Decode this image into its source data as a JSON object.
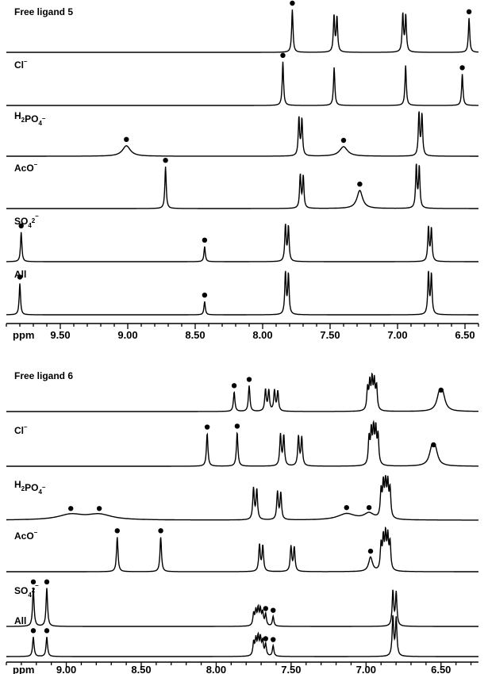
{
  "chart_data": [
    {
      "type": "nmr_stack",
      "x_unit_label": "ppm",
      "xlim": [
        9.9,
        6.4
      ],
      "ticks": [
        "9.50",
        "9.00",
        "8.50",
        "8.00",
        "7.50",
        "7.00",
        "6.50"
      ],
      "traces": [
        {
          "label": "Free ligand 5",
          "peaks": [
            {
              "ppm": 7.78,
              "height": 0.9,
              "star": true
            },
            {
              "ppm": 7.46,
              "height": 0.76,
              "mult": "d",
              "star": false
            },
            {
              "ppm": 6.95,
              "height": 0.8,
              "mult": "d",
              "star": false
            },
            {
              "ppm": 6.47,
              "height": 0.72,
              "star": true
            }
          ]
        },
        {
          "label": "Cl⁻",
          "peaks": [
            {
              "ppm": 7.85,
              "height": 0.92,
              "star": true
            },
            {
              "ppm": 7.47,
              "height": 0.8,
              "star": false
            },
            {
              "ppm": 6.94,
              "height": 0.84,
              "star": false
            },
            {
              "ppm": 6.52,
              "height": 0.66,
              "star": true
            }
          ]
        },
        {
          "label": "H₂PO₄⁻",
          "peaks": [
            {
              "ppm": 9.01,
              "height": 0.22,
              "width": 0.035,
              "star": true
            },
            {
              "ppm": 7.72,
              "height": 0.8,
              "mult": "d",
              "star": false
            },
            {
              "ppm": 7.4,
              "height": 0.2,
              "width": 0.035,
              "star": true
            },
            {
              "ppm": 6.83,
              "height": 0.9,
              "mult": "d",
              "star": false
            }
          ]
        },
        {
          "label": "AcO⁻",
          "peaks": [
            {
              "ppm": 8.72,
              "height": 0.88,
              "star": true
            },
            {
              "ppm": 7.71,
              "height": 0.7,
              "mult": "d",
              "star": false
            },
            {
              "ppm": 7.28,
              "height": 0.38,
              "width": 0.025,
              "star": true
            },
            {
              "ppm": 6.85,
              "height": 0.9,
              "mult": "d",
              "star": false
            }
          ]
        },
        {
          "label": "SO₄²⁻",
          "peaks": [
            {
              "ppm": 9.79,
              "height": 0.62,
              "star": true
            },
            {
              "ppm": 8.43,
              "height": 0.32,
              "star": true
            },
            {
              "ppm": 7.82,
              "height": 0.76,
              "mult": "d",
              "star": false
            },
            {
              "ppm": 6.76,
              "height": 0.72,
              "mult": "d",
              "star": false
            }
          ]
        },
        {
          "label": "All",
          "peaks": [
            {
              "ppm": 9.8,
              "height": 0.66,
              "star": true
            },
            {
              "ppm": 8.43,
              "height": 0.28,
              "star": true
            },
            {
              "ppm": 7.82,
              "height": 0.88,
              "mult": "d",
              "star": false
            },
            {
              "ppm": 6.76,
              "height": 0.88,
              "mult": "d",
              "star": false
            }
          ]
        }
      ]
    },
    {
      "type": "nmr_stack",
      "x_unit_label": "ppm",
      "xlim": [
        9.4,
        6.25
      ],
      "ticks": [
        "9.00",
        "8.50",
        "8.00",
        "7.50",
        "7.00",
        "6.50"
      ],
      "traces": [
        {
          "label": "Free ligand 6",
          "peaks": [
            {
              "ppm": 7.88,
              "height": 0.44,
              "star": true
            },
            {
              "ppm": 7.78,
              "height": 0.58,
              "star": true
            },
            {
              "ppm": 7.66,
              "height": 0.48,
              "mult": "d",
              "star": false
            },
            {
              "ppm": 7.6,
              "height": 0.46,
              "mult": "d",
              "star": false
            },
            {
              "ppm": 6.96,
              "height": 0.66,
              "mult": "m",
              "star": false
            },
            {
              "ppm": 6.5,
              "height": 0.34,
              "width": 0.02,
              "mult": "d",
              "star": true
            }
          ]
        },
        {
          "label": "Cl⁻",
          "peaks": [
            {
              "ppm": 8.06,
              "height": 0.74,
              "star": true
            },
            {
              "ppm": 7.86,
              "height": 0.76,
              "star": true
            },
            {
              "ppm": 7.56,
              "height": 0.7,
              "mult": "d",
              "star": false
            },
            {
              "ppm": 7.44,
              "height": 0.66,
              "mult": "d",
              "star": false
            },
            {
              "ppm": 6.95,
              "height": 0.8,
              "mult": "m",
              "star": false
            },
            {
              "ppm": 6.55,
              "height": 0.34,
              "width": 0.02,
              "mult": "d",
              "star": true
            }
          ]
        },
        {
          "label": "H₂PO₄⁻",
          "peaks": [
            {
              "ppm": 8.97,
              "height": 0.12,
              "width": 0.1,
              "star": true
            },
            {
              "ppm": 8.78,
              "height": 0.12,
              "width": 0.1,
              "star": true
            },
            {
              "ppm": 7.74,
              "height": 0.7,
              "mult": "d",
              "star": false
            },
            {
              "ppm": 7.58,
              "height": 0.62,
              "mult": "d",
              "star": false
            },
            {
              "ppm": 7.13,
              "height": 0.14,
              "width": 0.07,
              "star": true
            },
            {
              "ppm": 6.98,
              "height": 0.14,
              "width": 0.04,
              "star": true
            },
            {
              "ppm": 6.87,
              "height": 0.8,
              "mult": "m",
              "star": false
            }
          ]
        },
        {
          "label": "AcO⁻",
          "peaks": [
            {
              "ppm": 8.66,
              "height": 0.78,
              "star": true
            },
            {
              "ppm": 8.37,
              "height": 0.78,
              "star": true
            },
            {
              "ppm": 7.7,
              "height": 0.6,
              "mult": "d",
              "star": false
            },
            {
              "ppm": 7.49,
              "height": 0.56,
              "mult": "d",
              "star": false
            },
            {
              "ppm": 6.97,
              "height": 0.32,
              "width": 0.015,
              "star": true
            },
            {
              "ppm": 6.87,
              "height": 0.76,
              "mult": "m",
              "star": false
            }
          ]
        },
        {
          "label": "SO₄²⁻",
          "peaks": [
            {
              "ppm": 9.22,
              "height": 0.86,
              "star": true
            },
            {
              "ppm": 9.13,
              "height": 0.86,
              "star": true
            },
            {
              "ppm": 7.72,
              "height": 0.36,
              "mult": "m",
              "star": false
            },
            {
              "ppm": 7.67,
              "height": 0.26,
              "star": true
            },
            {
              "ppm": 7.62,
              "height": 0.22,
              "star": true
            },
            {
              "ppm": 6.81,
              "height": 0.78,
              "mult": "d",
              "star": false
            }
          ]
        },
        {
          "label": "All",
          "peaks": [
            {
              "ppm": 9.22,
              "height": 0.44,
              "star": true
            },
            {
              "ppm": 9.13,
              "height": 0.44,
              "star": true
            },
            {
              "ppm": 7.72,
              "height": 0.4,
              "mult": "m",
              "star": false
            },
            {
              "ppm": 7.67,
              "height": 0.26,
              "star": true
            },
            {
              "ppm": 7.62,
              "height": 0.24,
              "star": true
            },
            {
              "ppm": 6.81,
              "height": 0.88,
              "mult": "d",
              "star": false
            }
          ]
        }
      ]
    }
  ]
}
